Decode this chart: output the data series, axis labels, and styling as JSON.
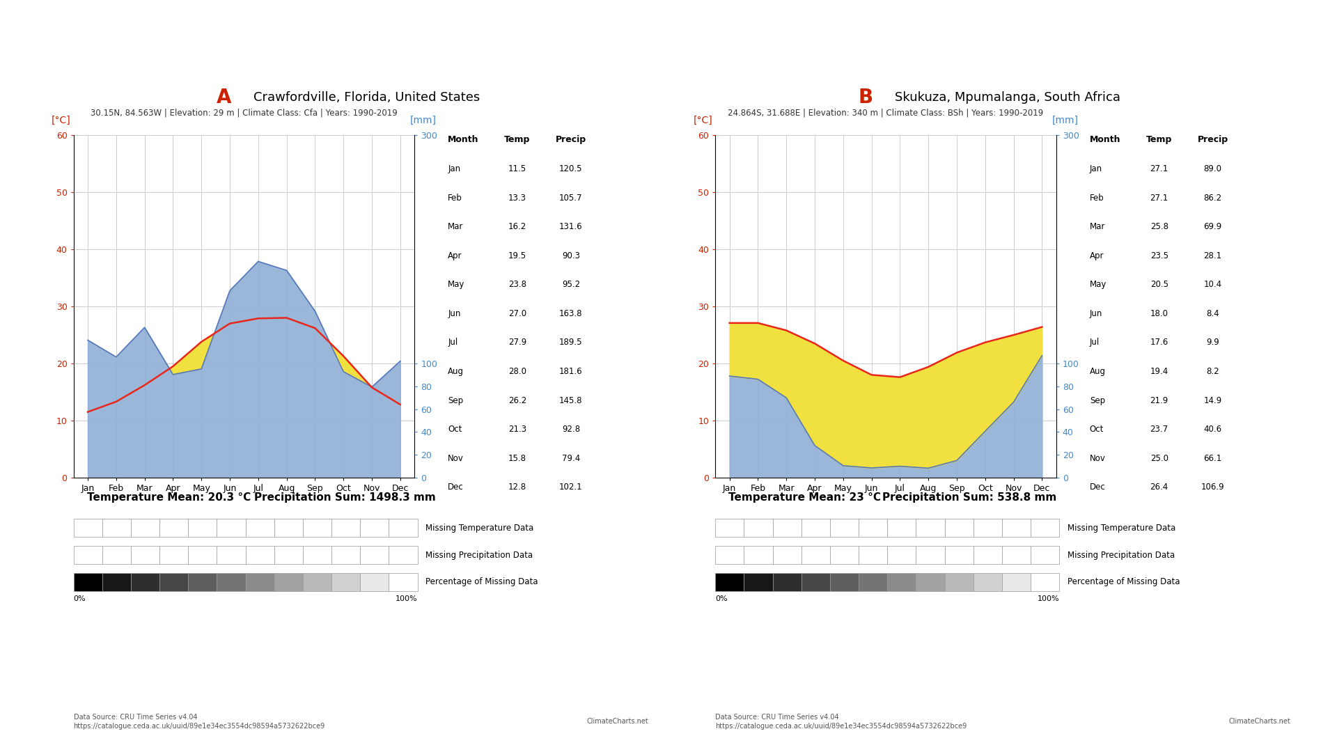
{
  "site_A": {
    "title": "Crawfordville, Florida, United States",
    "label": "A",
    "subtitle": "30.15N, 84.563W | Elevation: 29 m | Climate Class: Cfa | Years: 1990-2019",
    "temp_mean": "20.3",
    "precip_sum": "1498.3",
    "months": [
      "Jan",
      "Feb",
      "Mar",
      "Apr",
      "May",
      "Jun",
      "Jul",
      "Aug",
      "Sep",
      "Oct",
      "Nov",
      "Dec"
    ],
    "temp": [
      11.5,
      13.3,
      16.2,
      19.5,
      23.8,
      27.0,
      27.9,
      28.0,
      26.2,
      21.3,
      15.8,
      12.8
    ],
    "precip": [
      120.5,
      105.7,
      131.6,
      90.3,
      95.2,
      163.8,
      189.5,
      181.6,
      145.8,
      92.8,
      79.4,
      102.1
    ]
  },
  "site_B": {
    "title": "Skukuza, Mpumalanga, South Africa",
    "label": "B",
    "subtitle": "24.864S, 31.688E | Elevation: 340 m | Climate Class: BSh | Years: 1990-2019",
    "temp_mean": "23",
    "precip_sum": "538.8",
    "months": [
      "Jan",
      "Feb",
      "Mar",
      "Apr",
      "May",
      "Jun",
      "Jul",
      "Aug",
      "Sep",
      "Oct",
      "Nov",
      "Dec"
    ],
    "temp": [
      27.1,
      27.1,
      25.8,
      23.5,
      20.5,
      18.0,
      17.6,
      19.4,
      21.9,
      23.7,
      25.0,
      26.4
    ],
    "precip": [
      89.0,
      86.2,
      69.9,
      28.1,
      10.4,
      8.4,
      9.9,
      8.2,
      14.9,
      40.6,
      66.1,
      106.9
    ]
  },
  "colors": {
    "temp_line": "#e8261a",
    "precip_fill": "#8fafd6",
    "precip_line": "#5577bb",
    "yellow_fill": "#f0e040",
    "label_color": "#cc2200",
    "temp_axis_color": "#cc2200",
    "precip_axis_color": "#4488cc",
    "grid_color": "#cccccc",
    "bg_color": "#ffffff"
  },
  "temp_yticks": [
    0,
    10,
    20,
    30,
    40,
    50,
    60
  ],
  "precip_yticks": [
    0,
    20,
    40,
    60,
    80,
    100,
    300
  ],
  "footer_source_line1": "Data Source: CRU Time Series v4.04",
  "footer_source_line2": "https://catalogue.ceda.ac.uk/uuid/89e1e34ec3554dc98594a5732622bce9",
  "footer_right": "ClimateCharts.net"
}
